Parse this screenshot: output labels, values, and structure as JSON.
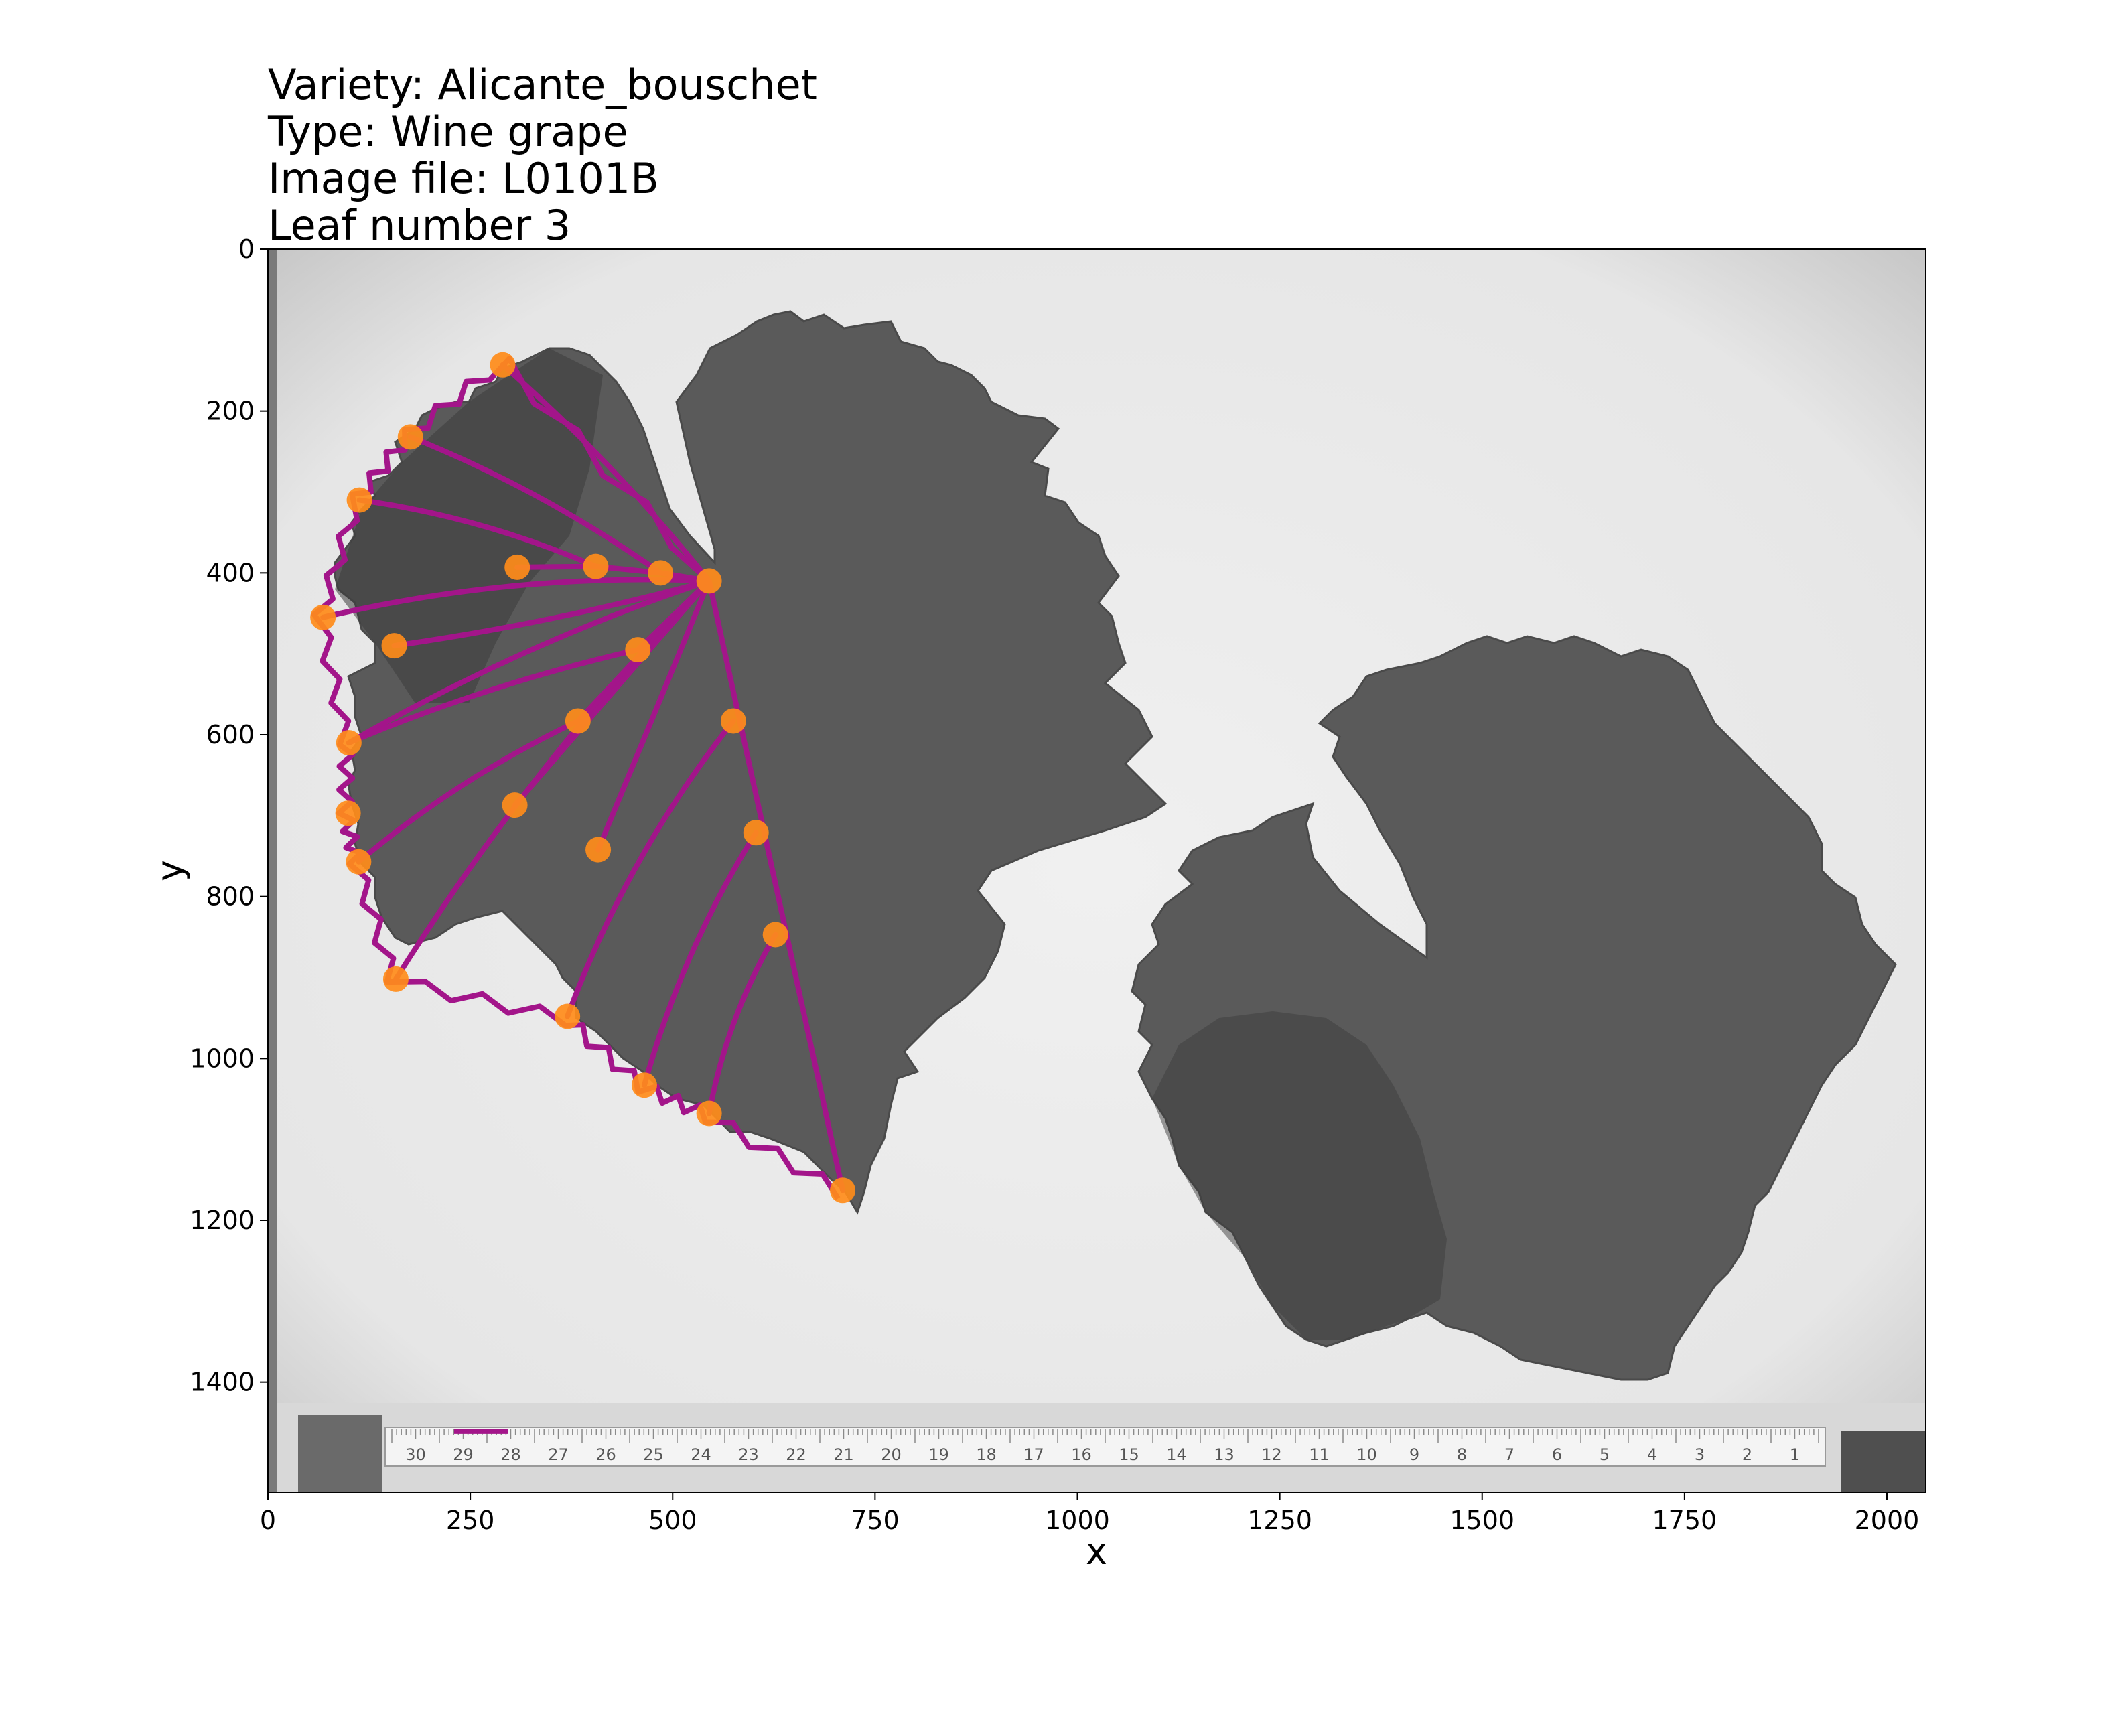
{
  "chart_data": {
    "type": "scatter",
    "title_lines": [
      "Variety: Alicante_bouschet",
      "Type: Wine grape",
      "Image file: L0101B",
      "Leaf number 3"
    ],
    "xlabel": "x",
    "ylabel": "y",
    "xlim": [
      0,
      2048
    ],
    "ylim": [
      1536,
      0
    ],
    "y_inverted": true,
    "x_ticks": [
      0,
      250,
      500,
      750,
      1000,
      1250,
      1500,
      1750,
      2000
    ],
    "y_ticks": [
      0,
      200,
      400,
      600,
      800,
      1000,
      1200,
      1400
    ],
    "grid": false,
    "background": "grayscale leaf scan with two grape leaves and a ruler along the bottom",
    "colors": {
      "landmark": "#ff8c1a",
      "outline": "#a3158a",
      "paper": "#ebebeb",
      "leaf": "#5a5a5a",
      "leaf_dark": "#3c3c3c"
    },
    "landmarks": {
      "x": [
        545,
        485,
        405,
        308,
        68,
        156,
        457,
        383,
        305,
        408,
        575,
        603,
        627,
        290,
        176,
        113,
        100,
        99,
        112,
        158,
        370,
        465,
        545,
        710
      ],
      "y": [
        410,
        400,
        392,
        393,
        455,
        490,
        495,
        583,
        687,
        742,
        583,
        721,
        847,
        143,
        232,
        310,
        610,
        697,
        757,
        902,
        948,
        1033,
        1068,
        1163
      ]
    },
    "scale_bar": {
      "x": [
        230,
        297
      ],
      "y": [
        1461,
        1461
      ]
    },
    "ruler_numbers": [
      "30",
      "29",
      "28",
      "27",
      "26",
      "25",
      "24",
      "23",
      "22",
      "21",
      "20",
      "19",
      "18",
      "17",
      "16",
      "15",
      "14",
      "13",
      "12",
      "11",
      "10",
      "9",
      "8",
      "7",
      "6",
      "5",
      "4",
      "3",
      "2",
      "1"
    ]
  }
}
